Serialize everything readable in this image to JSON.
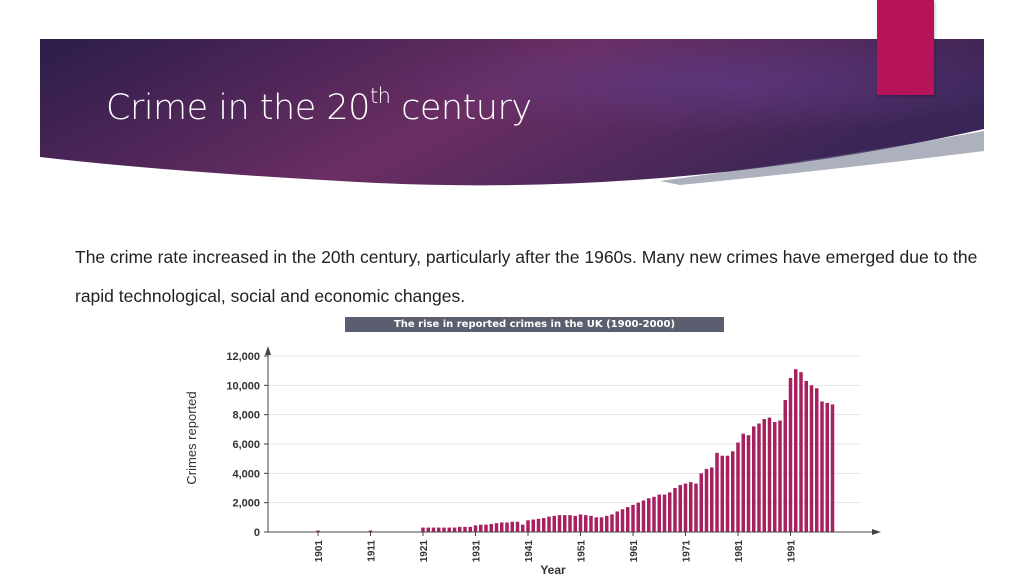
{
  "slide": {
    "title_main": "Crime in the 20",
    "title_sup": "th",
    "title_end": " century",
    "body": "The crime rate increased in the 20th century, particularly after the 1960s. Many new crimes have emerged due to the rapid technological, social and economic changes."
  },
  "colors": {
    "banner_dark": "#2b1d4a",
    "banner_mid": "#6b2e63",
    "accent_pink": "#b5135a",
    "bar": "#a8205f"
  },
  "chart_data": {
    "type": "bar",
    "title": "The rise in reported crimes in the UK (1900-2000)",
    "xlabel": "Year",
    "ylabel": "Crimes reported",
    "ylim": [
      0,
      12000
    ],
    "yticks": [
      0,
      2000,
      4000,
      6000,
      8000,
      10000,
      12000
    ],
    "ytick_labels": [
      "0",
      "2,000",
      "4,000",
      "6,000",
      "8,000",
      "10,000",
      "12,000"
    ],
    "xtick_labels": [
      "1901",
      "1911",
      "1921",
      "1931",
      "1941",
      "1951",
      "1961",
      "1971",
      "1981",
      "1991"
    ],
    "grid": true,
    "x": [
      1901,
      1911,
      1921,
      1922,
      1923,
      1924,
      1925,
      1926,
      1927,
      1928,
      1929,
      1930,
      1931,
      1932,
      1933,
      1934,
      1935,
      1936,
      1937,
      1938,
      1939,
      1940,
      1941,
      1942,
      1943,
      1944,
      1945,
      1946,
      1947,
      1948,
      1949,
      1950,
      1951,
      1952,
      1953,
      1954,
      1955,
      1956,
      1957,
      1958,
      1959,
      1960,
      1961,
      1962,
      1963,
      1964,
      1965,
      1966,
      1967,
      1968,
      1969,
      1970,
      1971,
      1972,
      1973,
      1974,
      1975,
      1976,
      1977,
      1978,
      1979,
      1980,
      1981,
      1982,
      1983,
      1984,
      1985,
      1986,
      1987,
      1988,
      1989,
      1990,
      1991,
      1992,
      1993,
      1994,
      1995,
      1996,
      1997,
      1998,
      1999
    ],
    "values": [
      100,
      100,
      300,
      300,
      300,
      300,
      300,
      300,
      300,
      350,
      350,
      350,
      450,
      500,
      500,
      550,
      600,
      650,
      650,
      700,
      700,
      500,
      800,
      850,
      900,
      950,
      1050,
      1100,
      1150,
      1150,
      1150,
      1100,
      1200,
      1150,
      1100,
      1000,
      1000,
      1100,
      1200,
      1400,
      1550,
      1700,
      1850,
      2000,
      2150,
      2300,
      2400,
      2550,
      2550,
      2700,
      3000,
      3200,
      3300,
      3400,
      3300,
      4000,
      4300,
      4400,
      5400,
      5200,
      5200,
      5500,
      6100,
      6700,
      6600,
      7200,
      7400,
      7700,
      7800,
      7500,
      7600,
      9000,
      10500,
      11100,
      10900,
      10300,
      10000,
      9800,
      8900,
      8800,
      8700
    ]
  }
}
